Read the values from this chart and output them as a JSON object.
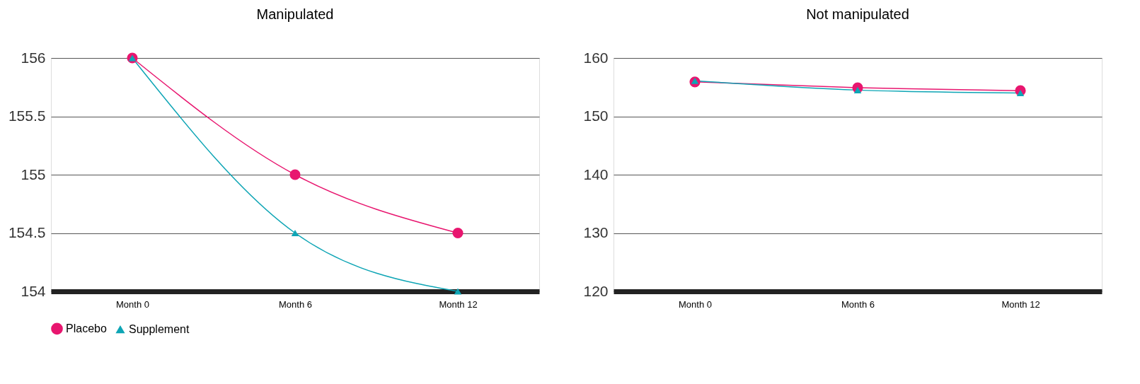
{
  "chart_data": [
    {
      "type": "line",
      "title": "Manipulated",
      "categories": [
        "Month 0",
        "Month 6",
        "Month 12"
      ],
      "ylim": [
        154,
        156
      ],
      "yticks": [
        154,
        154.5,
        155,
        155.5,
        156
      ],
      "grid": "y",
      "legend": "bottom",
      "series": [
        {
          "name": "Placebo",
          "color": "#e8166f",
          "marker": "circle",
          "values": [
            156,
            155,
            154.5
          ]
        },
        {
          "name": "Supplement",
          "color": "#0ea5b5",
          "marker": "triangle",
          "values": [
            156,
            154.5,
            154
          ]
        }
      ]
    },
    {
      "type": "line",
      "title": "Not manipulated",
      "categories": [
        "Month 0",
        "Month 6",
        "Month 12"
      ],
      "ylim": [
        120,
        160
      ],
      "yticks": [
        120,
        130,
        140,
        150,
        160
      ],
      "grid": "y",
      "legend": "bottom",
      "series": [
        {
          "name": "Placebo",
          "color": "#e8166f",
          "marker": "circle",
          "values": [
            155.9,
            154.9,
            154.4
          ]
        },
        {
          "name": "Supplement",
          "color": "#0ea5b5",
          "marker": "triangle",
          "values": [
            156.1,
            154.5,
            154.0
          ]
        }
      ]
    }
  ]
}
